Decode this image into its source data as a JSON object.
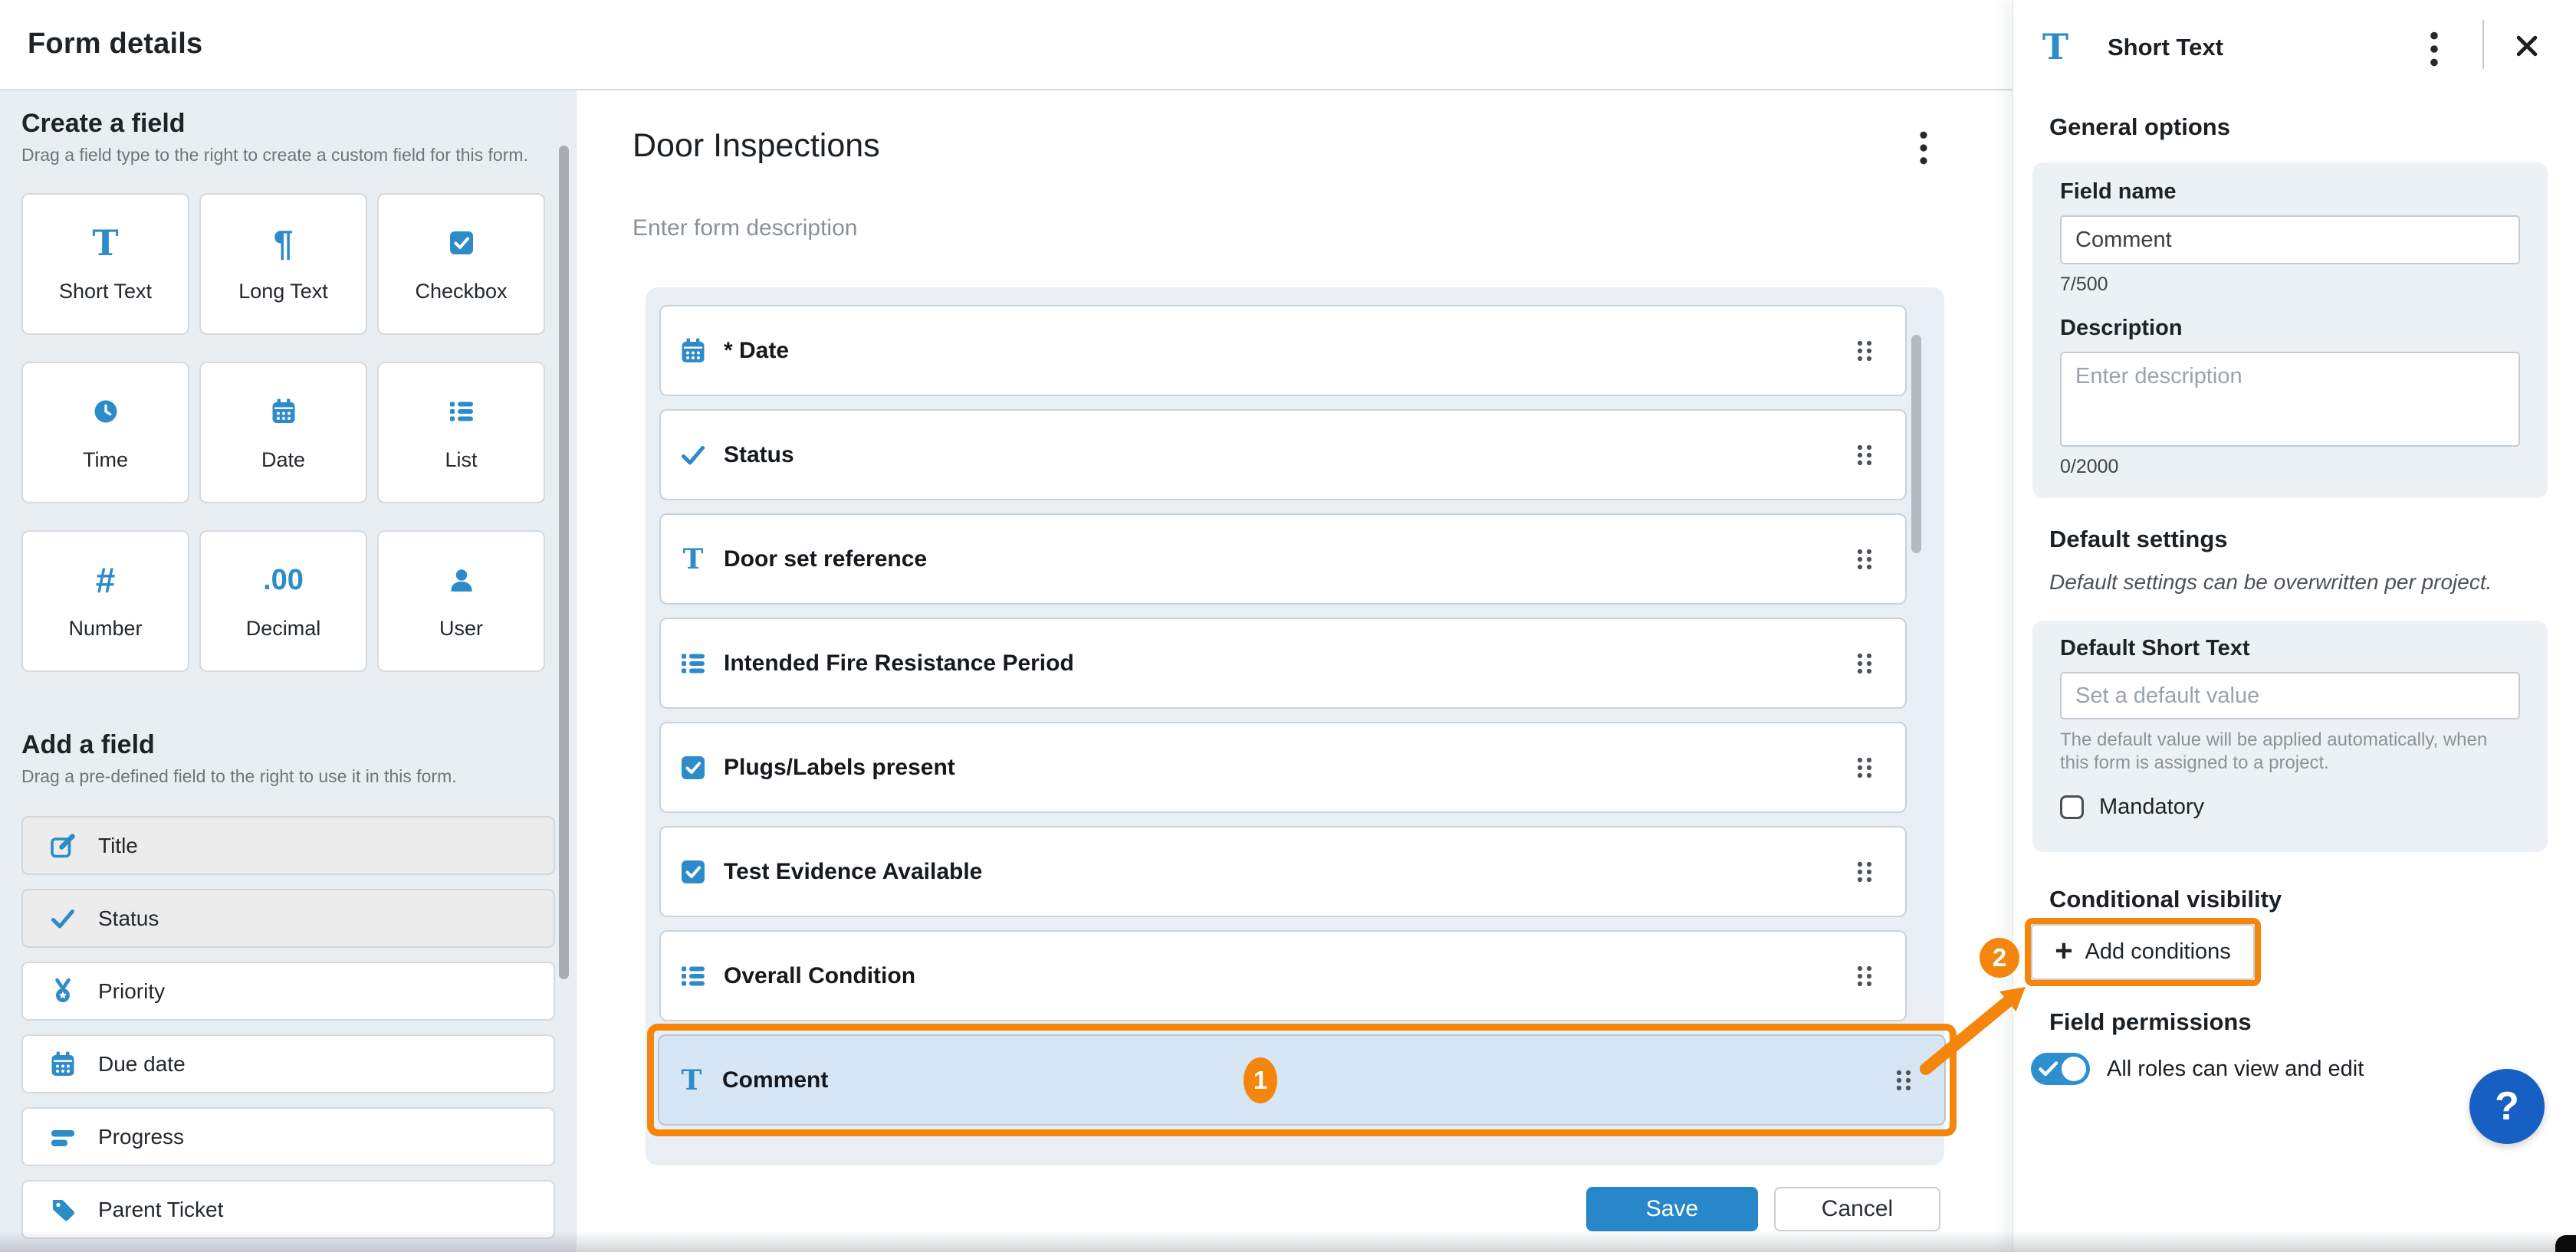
{
  "colors": {
    "icon_blue": "#2E8BC9",
    "save_blue": "#2787C9",
    "toggle_blue": "#2E8FD0",
    "help_blue": "#1660C4",
    "annotation_orange": "#F4860D",
    "highlight_row_bg": "#D6E6F4"
  },
  "topbar": {
    "title": "Form details"
  },
  "sidebar": {
    "create": {
      "title": "Create a field",
      "subtitle": "Drag a field type to the right to create a custom field for this form.",
      "tiles": [
        {
          "icon": "short-text",
          "label": "Short Text"
        },
        {
          "icon": "long-text",
          "label": "Long Text"
        },
        {
          "icon": "checkbox",
          "label": "Checkbox"
        },
        {
          "icon": "time",
          "label": "Time"
        },
        {
          "icon": "date",
          "label": "Date"
        },
        {
          "icon": "list",
          "label": "List"
        },
        {
          "icon": "number",
          "label": "Number"
        },
        {
          "icon": "decimal",
          "label": "Decimal"
        },
        {
          "icon": "user",
          "label": "User"
        }
      ]
    },
    "add": {
      "title": "Add a field",
      "subtitle": "Drag a pre-defined field to the right to use it in this form.",
      "items": [
        {
          "icon": "edit",
          "label": "Title",
          "disabled": true
        },
        {
          "icon": "check",
          "label": "Status",
          "disabled": true
        },
        {
          "icon": "medal",
          "label": "Priority",
          "disabled": false
        },
        {
          "icon": "date",
          "label": "Due date",
          "disabled": false
        },
        {
          "icon": "progress",
          "label": "Progress",
          "disabled": false
        },
        {
          "icon": "tags",
          "label": "Parent Ticket",
          "disabled": false
        }
      ]
    }
  },
  "form": {
    "title": "Door Inspections",
    "menu_icon": "kebab-menu",
    "description_placeholder": "Enter form description",
    "drag_icon": "drag-handle",
    "fields": [
      {
        "icon": "date",
        "label": "* Date",
        "highlighted": false
      },
      {
        "icon": "check",
        "label": "Status",
        "highlighted": false
      },
      {
        "icon": "short-text",
        "label": "Door set reference",
        "highlighted": false
      },
      {
        "icon": "list",
        "label": "Intended Fire Resistance Period",
        "highlighted": false
      },
      {
        "icon": "checkbox",
        "label": "Plugs/Labels present",
        "highlighted": false
      },
      {
        "icon": "checkbox",
        "label": "Test Evidence Available",
        "highlighted": false
      },
      {
        "icon": "list",
        "label": "Overall Condition",
        "highlighted": false
      },
      {
        "icon": "short-text",
        "label": "Comment",
        "highlighted": true
      }
    ],
    "save_label": "Save",
    "cancel_label": "Cancel"
  },
  "annotations": {
    "step1": "1",
    "step2": "2"
  },
  "panel": {
    "header": {
      "icon": "short-text",
      "title": "Short Text",
      "menu_icon": "kebab-menu",
      "close_icon": "close"
    },
    "general": {
      "heading": "General options",
      "field_name_label": "Field name",
      "field_name_value": "Comment",
      "field_name_counter": "7/500",
      "description_label": "Description",
      "description_placeholder": "Enter description",
      "description_counter": "0/2000"
    },
    "defaults": {
      "heading": "Default settings",
      "note": "Default settings can be overwritten per project.",
      "field_label": "Default Short Text",
      "placeholder": "Set a default value",
      "hint": "The default value will be applied automatically, when this form is assigned to a project.",
      "mandatory_label": "Mandatory"
    },
    "conditional": {
      "heading": "Conditional visibility",
      "add_button": "Add conditions"
    },
    "permissions": {
      "heading": "Field permissions",
      "toggle_label": "All roles can view and edit",
      "toggle_on": true
    },
    "help_label": "?"
  }
}
